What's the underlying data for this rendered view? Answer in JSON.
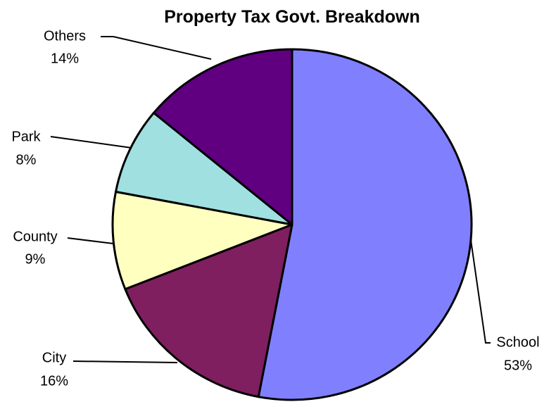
{
  "chart_data": {
    "type": "pie",
    "title": "Property Tax Govt. Breakdown",
    "start_angle_deg": 0,
    "direction": "clockwise",
    "slices": [
      {
        "name": "School",
        "pct_label": "53%",
        "value": 53,
        "color": "#8080FF"
      },
      {
        "name": "City",
        "pct_label": "16%",
        "value": 16,
        "color": "#7F1F5F"
      },
      {
        "name": "County",
        "pct_label": "9%",
        "value": 9,
        "color": "#FFFFC0"
      },
      {
        "name": "Park",
        "pct_label": "8%",
        "value": 8,
        "color": "#A0E0E0"
      },
      {
        "name": "Others",
        "pct_label": "14%",
        "value": 14,
        "color": "#600080"
      }
    ]
  }
}
